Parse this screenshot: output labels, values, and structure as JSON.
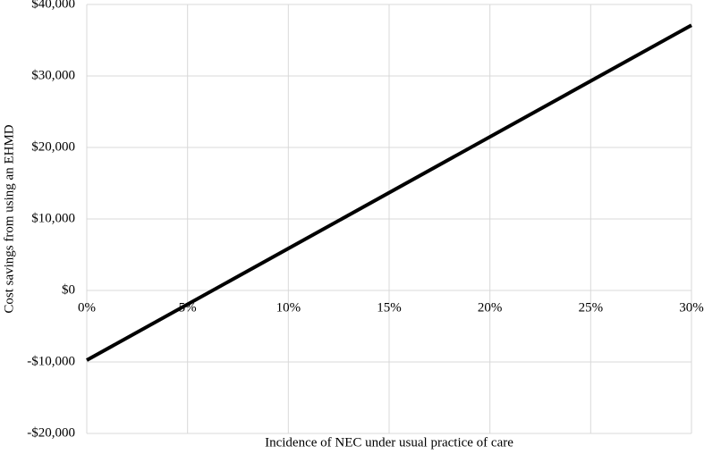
{
  "chart_data": {
    "type": "line",
    "xlabel": "Incidence of NEC under usual practice of care",
    "ylabel": "Cost savings from using an EHMD",
    "x": [
      0,
      30
    ],
    "series": [
      {
        "name": "Cost savings",
        "color": "#000000",
        "values": [
          -9750,
          37100
        ]
      }
    ],
    "xlim": [
      0,
      30
    ],
    "xticks": [
      {
        "value": 0,
        "label": "0%"
      },
      {
        "value": 5,
        "label": "5%"
      },
      {
        "value": 10,
        "label": "10%"
      },
      {
        "value": 15,
        "label": "15%"
      },
      {
        "value": 20,
        "label": "20%"
      },
      {
        "value": 25,
        "label": "25%"
      },
      {
        "value": 30,
        "label": "30%"
      }
    ],
    "ylim": [
      -20000,
      40000
    ],
    "yticks": [
      {
        "value": -20000,
        "label": "-$20,000"
      },
      {
        "value": -10000,
        "label": "-$10,000"
      },
      {
        "value": 0,
        "label": "$0"
      },
      {
        "value": 10000,
        "label": "$10,000"
      },
      {
        "value": 20000,
        "label": "$20,000"
      },
      {
        "value": 30000,
        "label": "$30,000"
      },
      {
        "value": 40000,
        "label": "$40,000"
      }
    ],
    "grid": true
  }
}
